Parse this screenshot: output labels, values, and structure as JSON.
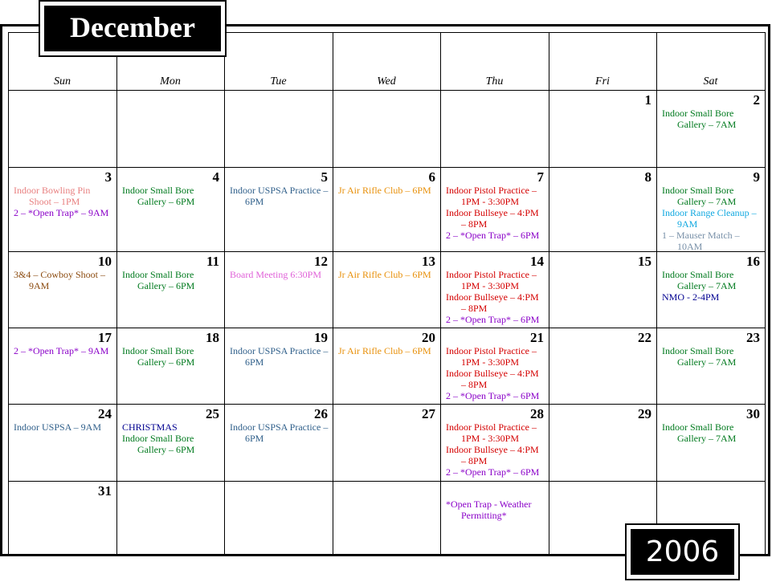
{
  "month": "December",
  "year": "2006",
  "weekdays": [
    "Sun",
    "Mon",
    "Tue",
    "Wed",
    "Thu",
    "Fri",
    "Sat"
  ],
  "weeks": [
    [
      null,
      null,
      null,
      null,
      null,
      {
        "day": 1,
        "events": []
      },
      {
        "day": 2,
        "events": [
          {
            "text": "Indoor Small Bore Gallery – 7AM",
            "color": "#007a1e"
          }
        ]
      }
    ],
    [
      {
        "day": 3,
        "events": [
          {
            "text": "Indoor Bowling Pin Shoot – 1PM",
            "color": "#e87f7f"
          },
          {
            "text": "2 – *Open Trap* – 9AM",
            "color": "#8a00c8"
          }
        ]
      },
      {
        "day": 4,
        "events": [
          {
            "text": "Indoor Small Bore Gallery – 6PM",
            "color": "#007a1e"
          }
        ]
      },
      {
        "day": 5,
        "events": [
          {
            "text": "Indoor USPSA Practice – 6PM",
            "color": "#2f5f8a"
          }
        ]
      },
      {
        "day": 6,
        "events": [
          {
            "text": "Jr Air Rifle Club – 6PM",
            "color": "#e8900a"
          }
        ]
      },
      {
        "day": 7,
        "events": [
          {
            "text": "Indoor Pistol Practice – 1PM - 3:30PM",
            "color": "#d40000"
          },
          {
            "text": "Indoor Bullseye – 4:PM – 8PM",
            "color": "#d40000"
          },
          {
            "text": "2 – *Open Trap* – 6PM",
            "color": "#8a00c8"
          }
        ]
      },
      {
        "day": 8,
        "events": []
      },
      {
        "day": 9,
        "events": [
          {
            "text": "Indoor Small Bore Gallery – 7AM",
            "color": "#007a1e"
          },
          {
            "text": "Indoor Range Cleanup – 9AM",
            "color": "#10a8e0"
          },
          {
            "text": "1 – Mauser Match – 10AM",
            "color": "#7890a8"
          }
        ]
      }
    ],
    [
      {
        "day": 10,
        "events": [
          {
            "text": "3&4 – Cowboy Shoot – 9AM",
            "color": "#8b4a0e"
          }
        ]
      },
      {
        "day": 11,
        "events": [
          {
            "text": "Indoor Small Bore Gallery – 6PM",
            "color": "#007a1e"
          }
        ]
      },
      {
        "day": 12,
        "events": [
          {
            "text": "Board Meeting 6:30PM",
            "color": "#e060d8"
          }
        ]
      },
      {
        "day": 13,
        "events": [
          {
            "text": "Jr Air Rifle Club – 6PM",
            "color": "#e8900a"
          }
        ]
      },
      {
        "day": 14,
        "events": [
          {
            "text": "Indoor Pistol Practice – 1PM - 3:30PM",
            "color": "#d40000"
          },
          {
            "text": "Indoor Bullseye – 4:PM – 8PM",
            "color": "#d40000"
          },
          {
            "text": "2 – *Open Trap* – 6PM",
            "color": "#8a00c8"
          }
        ]
      },
      {
        "day": 15,
        "events": []
      },
      {
        "day": 16,
        "events": [
          {
            "text": "Indoor Small Bore Gallery – 7AM",
            "color": "#007a1e"
          },
          {
            "text": "NMO - 2-4PM",
            "color": "#000090"
          }
        ]
      }
    ],
    [
      {
        "day": 17,
        "events": [
          {
            "text": "2 – *Open Trap* – 9AM",
            "color": "#8a00c8"
          }
        ]
      },
      {
        "day": 18,
        "events": [
          {
            "text": "Indoor Small Bore Gallery – 6PM",
            "color": "#007a1e"
          }
        ]
      },
      {
        "day": 19,
        "events": [
          {
            "text": "Indoor USPSA Practice – 6PM",
            "color": "#2f5f8a"
          }
        ]
      },
      {
        "day": 20,
        "events": [
          {
            "text": "Jr Air Rifle Club – 6PM",
            "color": "#e8900a"
          }
        ]
      },
      {
        "day": 21,
        "events": [
          {
            "text": "Indoor Pistol Practice – 1PM - 3:30PM",
            "color": "#d40000"
          },
          {
            "text": "Indoor Bullseye – 4:PM – 8PM",
            "color": "#d40000"
          },
          {
            "text": "2 – *Open Trap* – 6PM",
            "color": "#8a00c8"
          }
        ]
      },
      {
        "day": 22,
        "events": []
      },
      {
        "day": 23,
        "events": [
          {
            "text": "Indoor Small Bore Gallery – 7AM",
            "color": "#007a1e"
          }
        ]
      }
    ],
    [
      {
        "day": 24,
        "events": [
          {
            "text": "Indoor USPSA – 9AM",
            "color": "#2f5f8a"
          }
        ]
      },
      {
        "day": 25,
        "events": [
          {
            "text": "CHRISTMAS",
            "color": "#000090"
          },
          {
            "text": "Indoor Small Bore Gallery – 6PM",
            "color": "#007a1e"
          }
        ]
      },
      {
        "day": 26,
        "events": [
          {
            "text": "Indoor USPSA Practice – 6PM",
            "color": "#2f5f8a"
          }
        ]
      },
      {
        "day": 27,
        "events": []
      },
      {
        "day": 28,
        "events": [
          {
            "text": "Indoor Pistol Practice – 1PM - 3:30PM",
            "color": "#d40000"
          },
          {
            "text": "Indoor Bullseye – 4:PM – 8PM",
            "color": "#d40000"
          },
          {
            "text": "2 – *Open Trap* – 6PM",
            "color": "#8a00c8"
          }
        ]
      },
      {
        "day": 29,
        "events": []
      },
      {
        "day": 30,
        "events": [
          {
            "text": "Indoor Small Bore Gallery – 7AM",
            "color": "#007a1e"
          }
        ]
      }
    ],
    [
      {
        "day": 31,
        "events": []
      },
      null,
      null,
      null,
      {
        "events": [
          {
            "text": "*Open Trap - Weather Permitting*",
            "color": "#8a00c8"
          }
        ]
      },
      null,
      null
    ]
  ]
}
